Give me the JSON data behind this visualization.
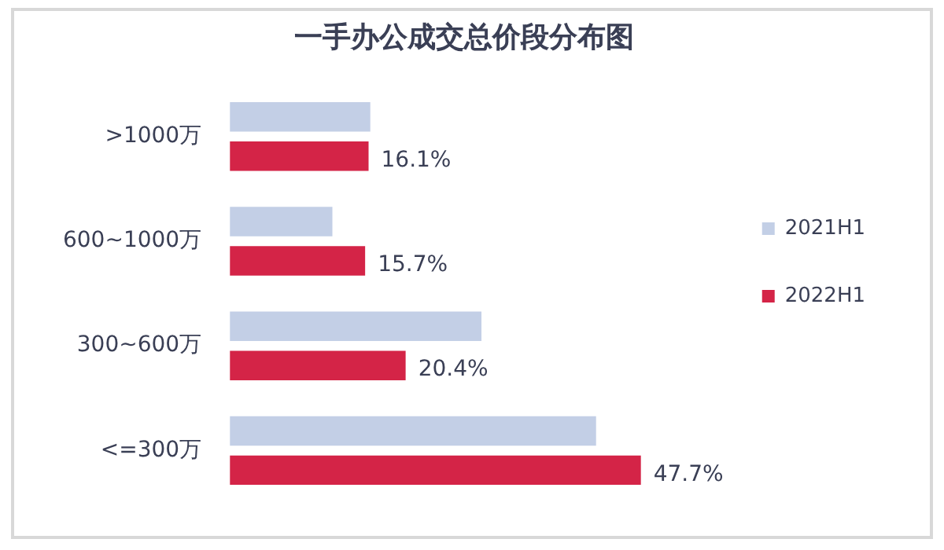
{
  "chart_data": {
    "type": "bar",
    "orientation": "horizontal",
    "title": "一手办公成交总价段分布图",
    "categories": [
      ">1000万",
      "600~1000万",
      "300~600万",
      "<=300万"
    ],
    "series": [
      {
        "name": "2021H1",
        "color": "#c3cfe6",
        "values": [
          16.3,
          11.9,
          29.2,
          42.5
        ]
      },
      {
        "name": "2022H1",
        "color": "#d42447",
        "values": [
          16.1,
          15.7,
          20.4,
          47.7
        ],
        "value_labels": [
          "16.1%",
          "15.7%",
          "20.4%",
          "47.7%"
        ]
      }
    ],
    "legend": "right",
    "tick_labels": "y"
  }
}
